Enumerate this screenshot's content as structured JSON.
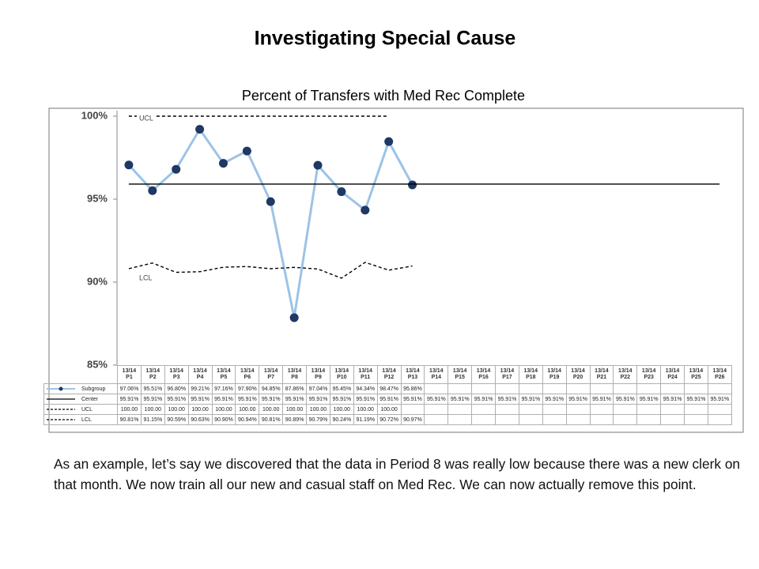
{
  "chart_data": {
    "type": "line",
    "title": "Investigating Special Cause",
    "subtitle": "Percent of Transfers with Med Rec Complete",
    "categories": [
      "13/14 P1",
      "13/14 P2",
      "13/14 P3",
      "13/14 P4",
      "13/14 P5",
      "13/14 P6",
      "13/14 P7",
      "13/14 P8",
      "13/14 P9",
      "13/14 P10",
      "13/14 P11",
      "13/14 P12",
      "13/14 P13",
      "13/14 P14",
      "13/14 P15",
      "13/14 P16",
      "13/14 P17",
      "13/14 P18",
      "13/14 P19",
      "13/14 P20",
      "13/14 P21",
      "13/14 P22",
      "13/14 P23",
      "13/14 P24",
      "13/14 P25",
      "13/14 P26"
    ],
    "series": [
      {
        "name": "Subgroup",
        "color": "#9dc3e6",
        "marker_color": "#1f3864",
        "style": "solid",
        "markers": true,
        "values": [
          97.06,
          95.51,
          96.8,
          99.21,
          97.16,
          97.9,
          94.85,
          87.86,
          97.04,
          95.45,
          94.34,
          98.47,
          95.86,
          null,
          null,
          null,
          null,
          null,
          null,
          null,
          null,
          null,
          null,
          null,
          null,
          null
        ],
        "value_labels": [
          "97.06%",
          "95.51%",
          "96.80%",
          "99.21%",
          "97.16%",
          "97.90%",
          "94.85%",
          "87.86%",
          "97.04%",
          "95.45%",
          "94.34%",
          "98.47%",
          "95.86%",
          null,
          null,
          null,
          null,
          null,
          null,
          null,
          null,
          null,
          null,
          null,
          null,
          null
        ]
      },
      {
        "name": "Center",
        "color": "#000000",
        "style": "solid",
        "markers": false,
        "values": [
          95.91,
          95.91,
          95.91,
          95.91,
          95.91,
          95.91,
          95.91,
          95.91,
          95.91,
          95.91,
          95.91,
          95.91,
          95.91,
          95.91,
          95.91,
          95.91,
          95.91,
          95.91,
          95.91,
          95.91,
          95.91,
          95.91,
          95.91,
          95.91,
          95.91,
          95.91
        ],
        "value_labels": [
          "95.91%",
          "95.91%",
          "95.91%",
          "95.91%",
          "95.91%",
          "95.91%",
          "95.91%",
          "95.91%",
          "95.91%",
          "95.91%",
          "95.91%",
          "95.91%",
          "95.91%",
          "95.91%",
          "95.91%",
          "95.91%",
          "95.91%",
          "95.91%",
          "95.91%",
          "95.91%",
          "95.91%",
          "95.91%",
          "95.91%",
          "95.91%",
          "95.91%",
          "95.91%"
        ]
      },
      {
        "name": "UCL",
        "color": "#000000",
        "style": "dashed",
        "markers": false,
        "label": "UCL",
        "values": [
          100,
          100,
          100,
          100,
          100,
          100,
          100,
          100,
          100,
          100,
          100,
          100,
          null,
          null,
          null,
          null,
          null,
          null,
          null,
          null,
          null,
          null,
          null,
          null,
          null,
          null
        ],
        "value_labels": [
          "100.00",
          "100.00",
          "100.00",
          "100.00",
          "100.00",
          "100.00",
          "100.00",
          "100.00",
          "100.00",
          "100.00",
          "100.00",
          "100.00",
          null,
          null,
          null,
          null,
          null,
          null,
          null,
          null,
          null,
          null,
          null,
          null,
          null,
          null
        ]
      },
      {
        "name": "LCL",
        "color": "#000000",
        "style": "dashed",
        "markers": false,
        "label": "LCL",
        "values": [
          90.81,
          91.15,
          90.59,
          90.63,
          90.9,
          90.94,
          90.81,
          90.89,
          90.79,
          90.24,
          91.19,
          90.72,
          90.97,
          null,
          null,
          null,
          null,
          null,
          null,
          null,
          null,
          null,
          null,
          null,
          null,
          null
        ],
        "value_labels": [
          "90.81%",
          "91.15%",
          "90.59%",
          "90.63%",
          "90.90%",
          "90.94%",
          "90.81%",
          "90.89%",
          "90.79%",
          "90.24%",
          "91.19%",
          "90.72%",
          "90.97%",
          null,
          null,
          null,
          null,
          null,
          null,
          null,
          null,
          null,
          null,
          null,
          null,
          null
        ]
      }
    ],
    "ylim": [
      85,
      100
    ],
    "yticks": [
      {
        "value": 85,
        "label": "85%"
      },
      {
        "value": 90,
        "label": "90%"
      },
      {
        "value": 95,
        "label": "95%"
      },
      {
        "value": 100,
        "label": "100%"
      }
    ],
    "grid": false
  },
  "body_text": "As an example, let’s say we discovered that the data in Period 8 was really low because there was a new clerk on that month. We now train all our new and casual staff on Med Rec. We can now actually remove this point."
}
